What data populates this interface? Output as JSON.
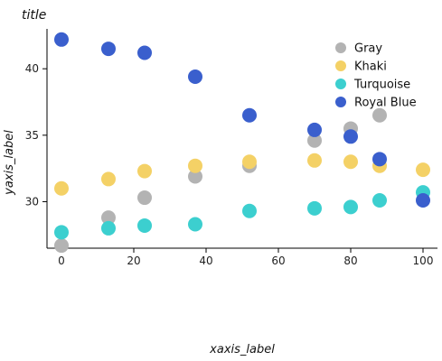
{
  "chart_data": {
    "type": "scatter",
    "title": "title",
    "xlabel": "xaxis_label",
    "ylabel": "yaxis_label",
    "xlim": [
      -4,
      104
    ],
    "ylim": [
      26.5,
      43.0
    ],
    "xticks": [
      0,
      20,
      40,
      60,
      80,
      100
    ],
    "yticks": [
      30,
      35,
      40
    ],
    "grid": false,
    "legend_position": "top-right",
    "series": [
      {
        "name": "Gray",
        "color": "#b3b3b3",
        "points": [
          [
            0,
            26.7
          ],
          [
            13,
            28.8
          ],
          [
            23,
            30.3
          ],
          [
            37,
            31.9
          ],
          [
            52,
            32.7
          ],
          [
            70,
            34.6
          ],
          [
            80,
            35.5
          ],
          [
            88,
            36.5
          ]
        ]
      },
      {
        "name": "Khaki",
        "color": "#f4d166",
        "points": [
          [
            0,
            31.0
          ],
          [
            13,
            31.7
          ],
          [
            23,
            32.3
          ],
          [
            37,
            32.7
          ],
          [
            52,
            33.0
          ],
          [
            70,
            33.1
          ],
          [
            80,
            33.0
          ],
          [
            88,
            32.7
          ],
          [
            100,
            32.4
          ]
        ]
      },
      {
        "name": "Turquoise",
        "color": "#3ccfcf",
        "points": [
          [
            0,
            27.7
          ],
          [
            13,
            28.0
          ],
          [
            23,
            28.2
          ],
          [
            37,
            28.3
          ],
          [
            52,
            29.3
          ],
          [
            70,
            29.5
          ],
          [
            80,
            29.6
          ],
          [
            88,
            30.1
          ],
          [
            100,
            30.7
          ]
        ]
      },
      {
        "name": "Royal Blue",
        "color": "#3a5fcd",
        "points": [
          [
            0,
            42.2
          ],
          [
            13,
            41.5
          ],
          [
            23,
            41.2
          ],
          [
            37,
            39.4
          ],
          [
            52,
            36.5
          ],
          [
            70,
            35.4
          ],
          [
            80,
            34.9
          ],
          [
            88,
            33.2
          ],
          [
            100,
            30.1
          ]
        ]
      }
    ]
  }
}
